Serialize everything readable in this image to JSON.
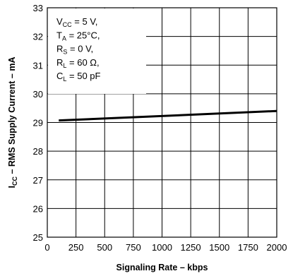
{
  "chart_data": {
    "type": "line",
    "xlabel": "Signaling Rate – kbps",
    "ylabel": {
      "main": "I",
      "sub": "CC",
      "rest": " – RMS Supply Current – mA"
    },
    "xlim": [
      0,
      2000
    ],
    "ylim": [
      25,
      33
    ],
    "x_ticks": [
      0,
      250,
      500,
      750,
      1000,
      1250,
      1500,
      1750,
      2000
    ],
    "y_ticks": [
      25,
      26,
      27,
      28,
      29,
      30,
      31,
      32,
      33
    ],
    "grid": true,
    "series": [
      {
        "x": [
          100,
          2000
        ],
        "y": [
          29.07,
          29.4
        ]
      }
    ],
    "conditions": [
      {
        "main": "V",
        "sub": "CC",
        "rest": " = 5 V,"
      },
      {
        "main": "T",
        "sub": "A",
        "rest": " = 25°C,"
      },
      {
        "main": "R",
        "sub": "S",
        "rest": " = 0 V,"
      },
      {
        "main": "R",
        "sub": "L",
        "rest": " = 60 Ω,"
      },
      {
        "main": "C",
        "sub": "L",
        "rest": " = 50 pF"
      }
    ]
  }
}
